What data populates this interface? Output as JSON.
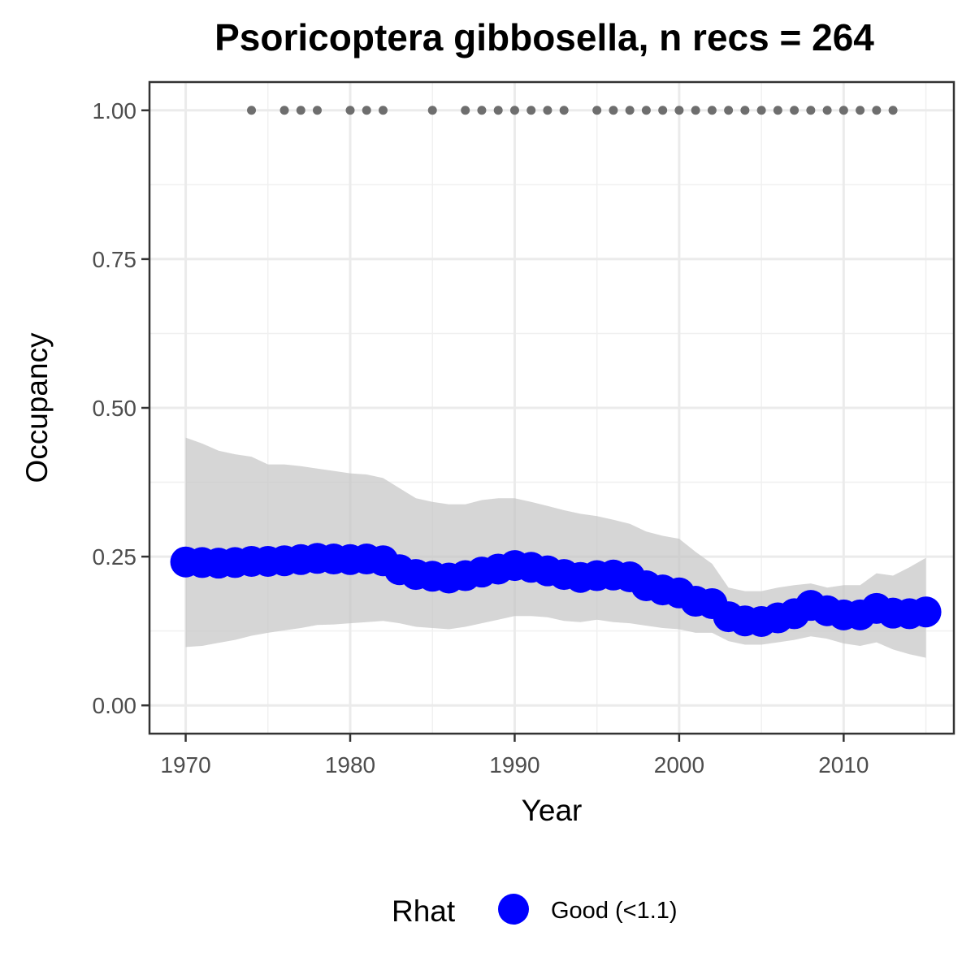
{
  "chart_data": {
    "type": "line",
    "title": "Psoricoptera gibbosella, n recs = 264",
    "xlabel": "Year",
    "ylabel": "Occupancy",
    "xlim": [
      1967.8,
      2016.7
    ],
    "ylim": [
      -0.0475,
      1.0475
    ],
    "x_ticks": [
      1970,
      1980,
      1990,
      2000,
      2010
    ],
    "x_tick_labels": [
      "1970",
      "1980",
      "1990",
      "2000",
      "2010"
    ],
    "y_ticks": [
      0,
      0.25,
      0.5,
      0.75,
      1.0
    ],
    "y_tick_labels": [
      "0.00",
      "0.25",
      "0.50",
      "0.75",
      "1.00"
    ],
    "grid": true,
    "legend": {
      "title": "Rhat",
      "position": "bottom",
      "entries": [
        {
          "label": "Good (<1.1)",
          "color": "#0000ff"
        }
      ]
    },
    "series": [
      {
        "type": "line-with-points",
        "color": "#0000ff",
        "x": [
          1970,
          1971,
          1972,
          1973,
          1974,
          1975,
          1976,
          1977,
          1978,
          1979,
          1980,
          1981,
          1982,
          1983,
          1984,
          1985,
          1986,
          1987,
          1988,
          1989,
          1990,
          1991,
          1992,
          1993,
          1994,
          1995,
          1996,
          1997,
          1998,
          1999,
          2000,
          2001,
          2002,
          2003,
          2004,
          2005,
          2006,
          2007,
          2008,
          2009,
          2010,
          2011,
          2012,
          2013,
          2014,
          2015
        ],
        "values": [
          0.241,
          0.24,
          0.239,
          0.24,
          0.242,
          0.242,
          0.243,
          0.245,
          0.247,
          0.246,
          0.245,
          0.246,
          0.243,
          0.228,
          0.22,
          0.217,
          0.214,
          0.218,
          0.224,
          0.229,
          0.235,
          0.232,
          0.226,
          0.22,
          0.215,
          0.218,
          0.219,
          0.216,
          0.201,
          0.194,
          0.189,
          0.175,
          0.171,
          0.149,
          0.142,
          0.141,
          0.147,
          0.154,
          0.168,
          0.159,
          0.152,
          0.152,
          0.163,
          0.155,
          0.154,
          0.157
        ]
      },
      {
        "type": "ribbon",
        "color": "#d9d9d9",
        "x": [
          1970,
          1971,
          1972,
          1973,
          1974,
          1975,
          1976,
          1977,
          1978,
          1979,
          1980,
          1981,
          1982,
          1983,
          1984,
          1985,
          1986,
          1987,
          1988,
          1989,
          1990,
          1991,
          1992,
          1993,
          1994,
          1995,
          1996,
          1997,
          1998,
          1999,
          2000,
          2001,
          2002,
          2003,
          2004,
          2005,
          2006,
          2007,
          2008,
          2009,
          2010,
          2011,
          2012,
          2013,
          2014,
          2015
        ],
        "lower": [
          0.098,
          0.1,
          0.105,
          0.11,
          0.117,
          0.122,
          0.126,
          0.13,
          0.135,
          0.136,
          0.138,
          0.14,
          0.142,
          0.138,
          0.132,
          0.13,
          0.128,
          0.132,
          0.138,
          0.144,
          0.15,
          0.15,
          0.148,
          0.142,
          0.14,
          0.144,
          0.14,
          0.138,
          0.134,
          0.13,
          0.128,
          0.122,
          0.122,
          0.108,
          0.102,
          0.102,
          0.106,
          0.11,
          0.116,
          0.112,
          0.104,
          0.1,
          0.106,
          0.094,
          0.086,
          0.08
        ],
        "upper": [
          0.45,
          0.44,
          0.428,
          0.422,
          0.418,
          0.405,
          0.405,
          0.402,
          0.398,
          0.394,
          0.39,
          0.388,
          0.382,
          0.365,
          0.348,
          0.342,
          0.338,
          0.338,
          0.345,
          0.348,
          0.348,
          0.342,
          0.335,
          0.328,
          0.322,
          0.318,
          0.312,
          0.305,
          0.292,
          0.285,
          0.28,
          0.258,
          0.238,
          0.198,
          0.192,
          0.192,
          0.198,
          0.202,
          0.205,
          0.198,
          0.202,
          0.202,
          0.222,
          0.218,
          0.232,
          0.248
        ]
      },
      {
        "type": "scatter",
        "color": "#6e6e6e",
        "x": [
          1974,
          1976,
          1977,
          1978,
          1980,
          1981,
          1982,
          1985,
          1987,
          1988,
          1989,
          1990,
          1991,
          1992,
          1993,
          1995,
          1996,
          1997,
          1998,
          1999,
          2000,
          2001,
          2002,
          2003,
          2004,
          2005,
          2006,
          2007,
          2008,
          2009,
          2010,
          2011,
          2012,
          2013
        ],
        "values": [
          1,
          1,
          1,
          1,
          1,
          1,
          1,
          1,
          1,
          1,
          1,
          1,
          1,
          1,
          1,
          1,
          1,
          1,
          1,
          1,
          1,
          1,
          1,
          1,
          1,
          1,
          1,
          1,
          1,
          1,
          1,
          1,
          1,
          1
        ]
      }
    ]
  }
}
